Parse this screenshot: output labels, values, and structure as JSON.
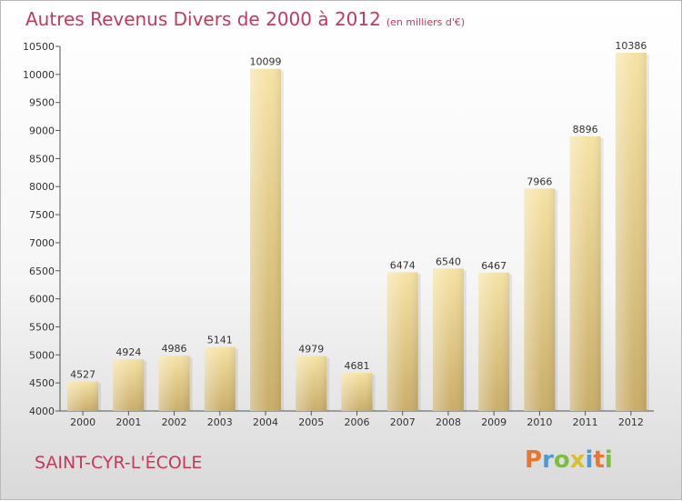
{
  "title": "Autres Revenus Divers de 2000 à 2012",
  "subtitle": "(en milliers d'€)",
  "city": "SAINT-CYR-L'ÉCOLE",
  "logo": {
    "letters": [
      "P",
      "r",
      "o",
      "x",
      "i",
      "t",
      "i"
    ],
    "colors": [
      "#e8772d",
      "#4f9ad6",
      "#7cbf3e",
      "#d9c02b",
      "#4f9ad6",
      "#e8772d",
      "#7cbf3e"
    ]
  },
  "colors": {
    "accent": "#c4395c",
    "bar_light": "#f6e3a4",
    "bar_dark": "#c9ad69"
  },
  "chart_data": {
    "type": "bar",
    "categories": [
      "2000",
      "2001",
      "2002",
      "2003",
      "2004",
      "2005",
      "2006",
      "2007",
      "2008",
      "2009",
      "2010",
      "2011",
      "2012"
    ],
    "values": [
      4527,
      4924,
      4986,
      5141,
      10099,
      4979,
      4681,
      6474,
      6540,
      6467,
      7966,
      8896,
      10386
    ],
    "ylim": [
      4000,
      10500
    ],
    "yticks": [
      4000,
      4500,
      5000,
      5500,
      6000,
      6500,
      7000,
      7500,
      8000,
      8500,
      9000,
      9500,
      10000,
      10500
    ],
    "grid": false
  }
}
